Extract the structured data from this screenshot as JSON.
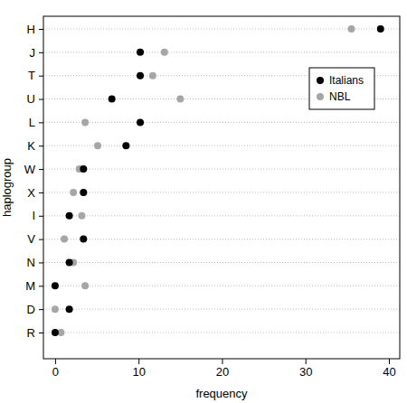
{
  "chart_data": {
    "type": "dot",
    "x_label": "frequency",
    "y_label": "haplogroup",
    "categories": [
      "H",
      "J",
      "T",
      "U",
      "L",
      "K",
      "W",
      "X",
      "I",
      "V",
      "N",
      "M",
      "D",
      "R"
    ],
    "series": [
      {
        "name": "Italians",
        "color": "#000000",
        "marker": "circle",
        "values": [
          39,
          10.2,
          10.2,
          6.8,
          10.2,
          8.5,
          3.4,
          3.4,
          1.7,
          3.4,
          1.7,
          0,
          1.7,
          0
        ]
      },
      {
        "name": "NBL",
        "color": "#a6a6a6",
        "marker": "circle",
        "values": [
          35.5,
          13.1,
          11.7,
          15.0,
          3.6,
          5.1,
          2.9,
          2.2,
          3.2,
          1.1,
          2.2,
          3.6,
          0,
          0.7
        ]
      }
    ],
    "xlim": [
      -1.4,
      41.3
    ],
    "xticks": [
      0,
      10,
      20,
      30,
      40
    ],
    "grid": true,
    "legend": "upper right"
  }
}
